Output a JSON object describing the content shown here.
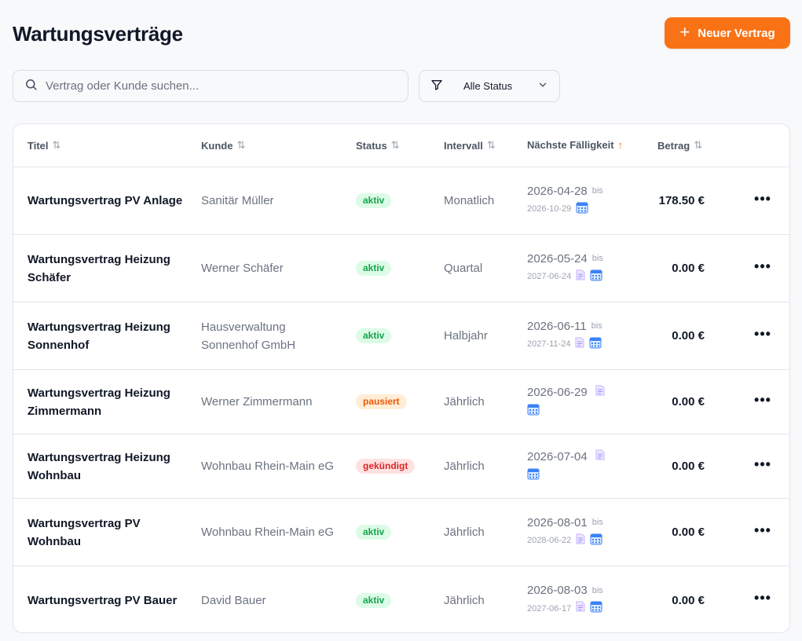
{
  "page": {
    "title": "Wartungsverträge"
  },
  "toolbar": {
    "new_button_label": "Neuer Vertrag",
    "new_button_icon": "plus-icon"
  },
  "search": {
    "placeholder": "Vertrag oder Kunde suchen...",
    "value": ""
  },
  "filter": {
    "selected": "Alle Status"
  },
  "colors": {
    "accent": "#f97316",
    "aktiv": "#16a34a",
    "pausiert": "#ea580c",
    "gekuendigt": "#dc2626"
  },
  "table": {
    "columns": {
      "titel": "Titel",
      "kunde": "Kunde",
      "status": "Status",
      "intervall": "Intervall",
      "faelligkeit": "Nächste Fälligkeit",
      "betrag": "Betrag"
    },
    "sort_column": "faelligkeit",
    "sort_direction": "asc",
    "rows": [
      {
        "title": "Wartungsvertrag PV Anlage",
        "kunde": "Sanitär Müller",
        "status": "aktiv",
        "status_type": "aktiv",
        "intervall": "Monatlich",
        "due": "2026-04-28",
        "bis": "bis",
        "end": "2026-10-29",
        "doc_icon": false,
        "amount": "178.50 €"
      },
      {
        "title": "Wartungsvertrag Heizung Schäfer",
        "kunde": "Werner Schäfer",
        "status": "aktiv",
        "status_type": "aktiv",
        "intervall": "Quartal",
        "due": "2026-05-24",
        "bis": "bis",
        "end": "2027-06-24",
        "doc_icon": true,
        "amount": "0.00 €"
      },
      {
        "title": "Wartungsvertrag Heizung Sonnenhof",
        "kunde": "Hausverwaltung Sonnenhof GmbH",
        "status": "aktiv",
        "status_type": "aktiv",
        "intervall": "Halbjahr",
        "due": "2026-06-11",
        "bis": "bis",
        "end": "2027-11-24",
        "doc_icon": true,
        "amount": "0.00 €"
      },
      {
        "title": "Wartungsvertrag Heizung Zimmermann",
        "kunde": "Werner Zimmermann",
        "status": "pausiert",
        "status_type": "pausiert",
        "intervall": "Jährlich",
        "due": "2026-06-29",
        "bis": "",
        "end": "",
        "doc_icon": true,
        "amount": "0.00 €"
      },
      {
        "title": "Wartungsvertrag Heizung Wohnbau",
        "kunde": "Wohnbau Rhein-Main eG",
        "status": "gekündigt",
        "status_type": "gekuendigt",
        "intervall": "Jährlich",
        "due": "2026-07-04",
        "bis": "",
        "end": "",
        "doc_icon": true,
        "amount": "0.00 €"
      },
      {
        "title": "Wartungsvertrag PV Wohnbau",
        "kunde": "Wohnbau Rhein-Main eG",
        "status": "aktiv",
        "status_type": "aktiv",
        "intervall": "Jährlich",
        "due": "2026-08-01",
        "bis": "bis",
        "end": "2028-06-22",
        "doc_icon": true,
        "amount": "0.00 €"
      },
      {
        "title": "Wartungsvertrag PV Bauer",
        "kunde": "David Bauer",
        "status": "aktiv",
        "status_type": "aktiv",
        "intervall": "Jährlich",
        "due": "2026-08-03",
        "bis": "bis",
        "end": "2027-06-17",
        "doc_icon": true,
        "amount": "0.00 €"
      }
    ]
  }
}
